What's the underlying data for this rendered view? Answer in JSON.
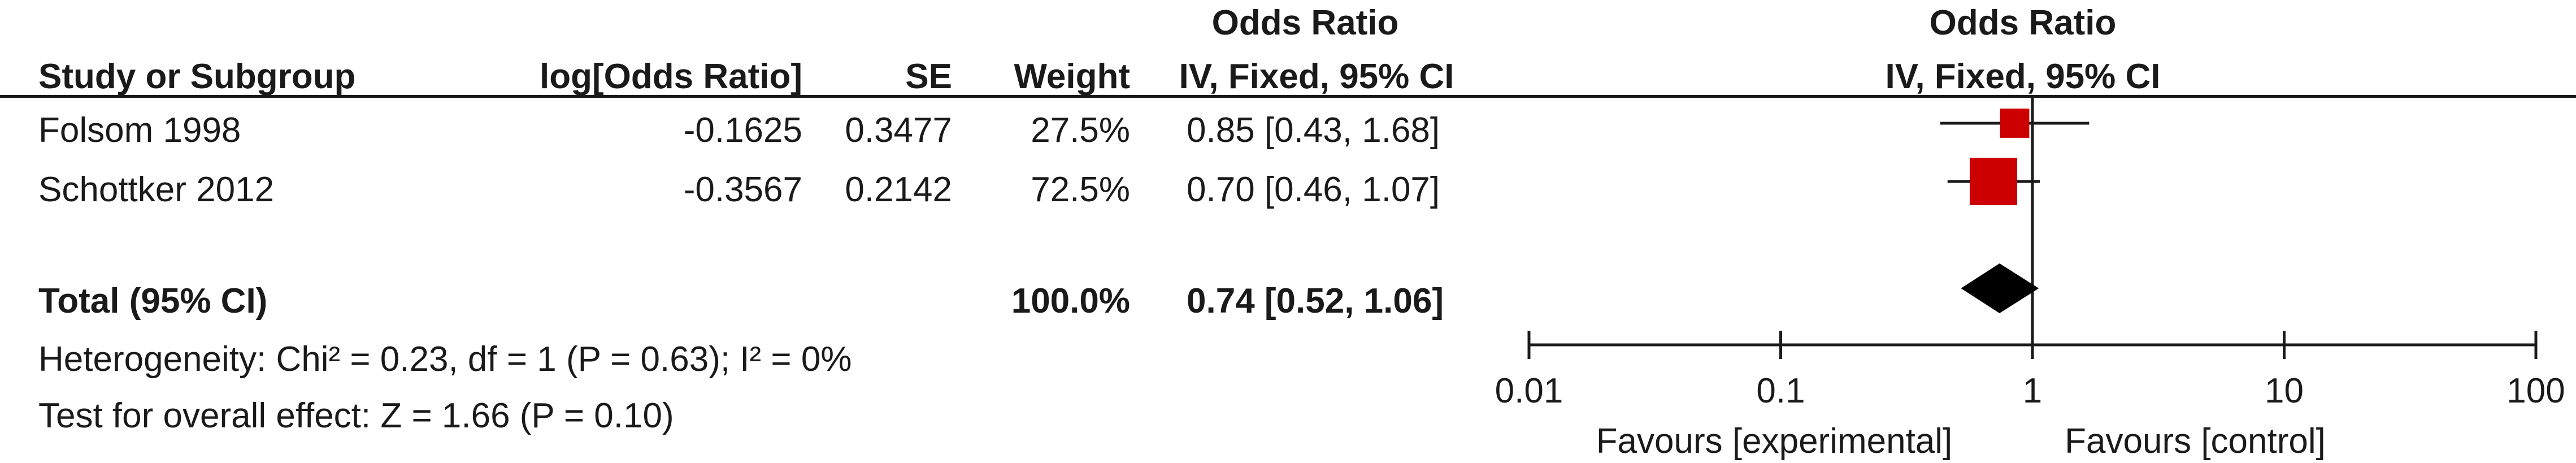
{
  "header": {
    "or_title_table": "Odds Ratio",
    "or_title_plot": "Odds Ratio",
    "col_study": "Study or Subgroup",
    "col_logor": "log[Odds Ratio]",
    "col_se": "SE",
    "col_weight": "Weight",
    "col_method": "IV, Fixed, 95% CI",
    "plot_method": "IV, Fixed, 95% CI"
  },
  "studies": [
    {
      "name": "Folsom 1998",
      "log_or": "-0.1625",
      "se": "0.3477",
      "weight": "27.5%",
      "ci_text": "0.85 [0.43, 1.68]"
    },
    {
      "name": "Schottker 2012",
      "log_or": "-0.3567",
      "se": "0.2142",
      "weight": "72.5%",
      "ci_text": "0.70 [0.46, 1.07]"
    }
  ],
  "total": {
    "label": "Total (95% CI)",
    "weight": "100.0%",
    "ci_text": "0.74 [0.52, 1.06]"
  },
  "footer": {
    "heterogeneity": "Heterogeneity: Chi² = 0.23, df = 1 (P = 0.63); I² = 0%",
    "overall": "Test for overall effect: Z = 1.66 (P = 0.10)"
  },
  "axis": {
    "favours_left": "Favours [experimental]",
    "favours_right": "Favours [control]"
  },
  "chart_data": {
    "type": "forest",
    "scale": "log",
    "xlim": [
      0.01,
      100
    ],
    "ticks": [
      {
        "value": 0.01,
        "label": "0.01"
      },
      {
        "value": 0.1,
        "label": "0.1"
      },
      {
        "value": 1,
        "label": "1"
      },
      {
        "value": 10,
        "label": "10"
      },
      {
        "value": 100,
        "label": "100"
      }
    ],
    "null_line": 1,
    "series": [
      {
        "study": "Folsom 1998",
        "or": 0.85,
        "lower": 0.43,
        "upper": 1.68,
        "weight": 27.5
      },
      {
        "study": "Schottker 2012",
        "or": 0.7,
        "lower": 0.46,
        "upper": 1.07,
        "weight": 72.5
      }
    ],
    "pooled": {
      "or": 0.74,
      "lower": 0.52,
      "upper": 1.06
    },
    "colors": {
      "study_marker": "#cc0000",
      "pooled_marker": "#000000",
      "line": "#1a1a1a"
    }
  }
}
